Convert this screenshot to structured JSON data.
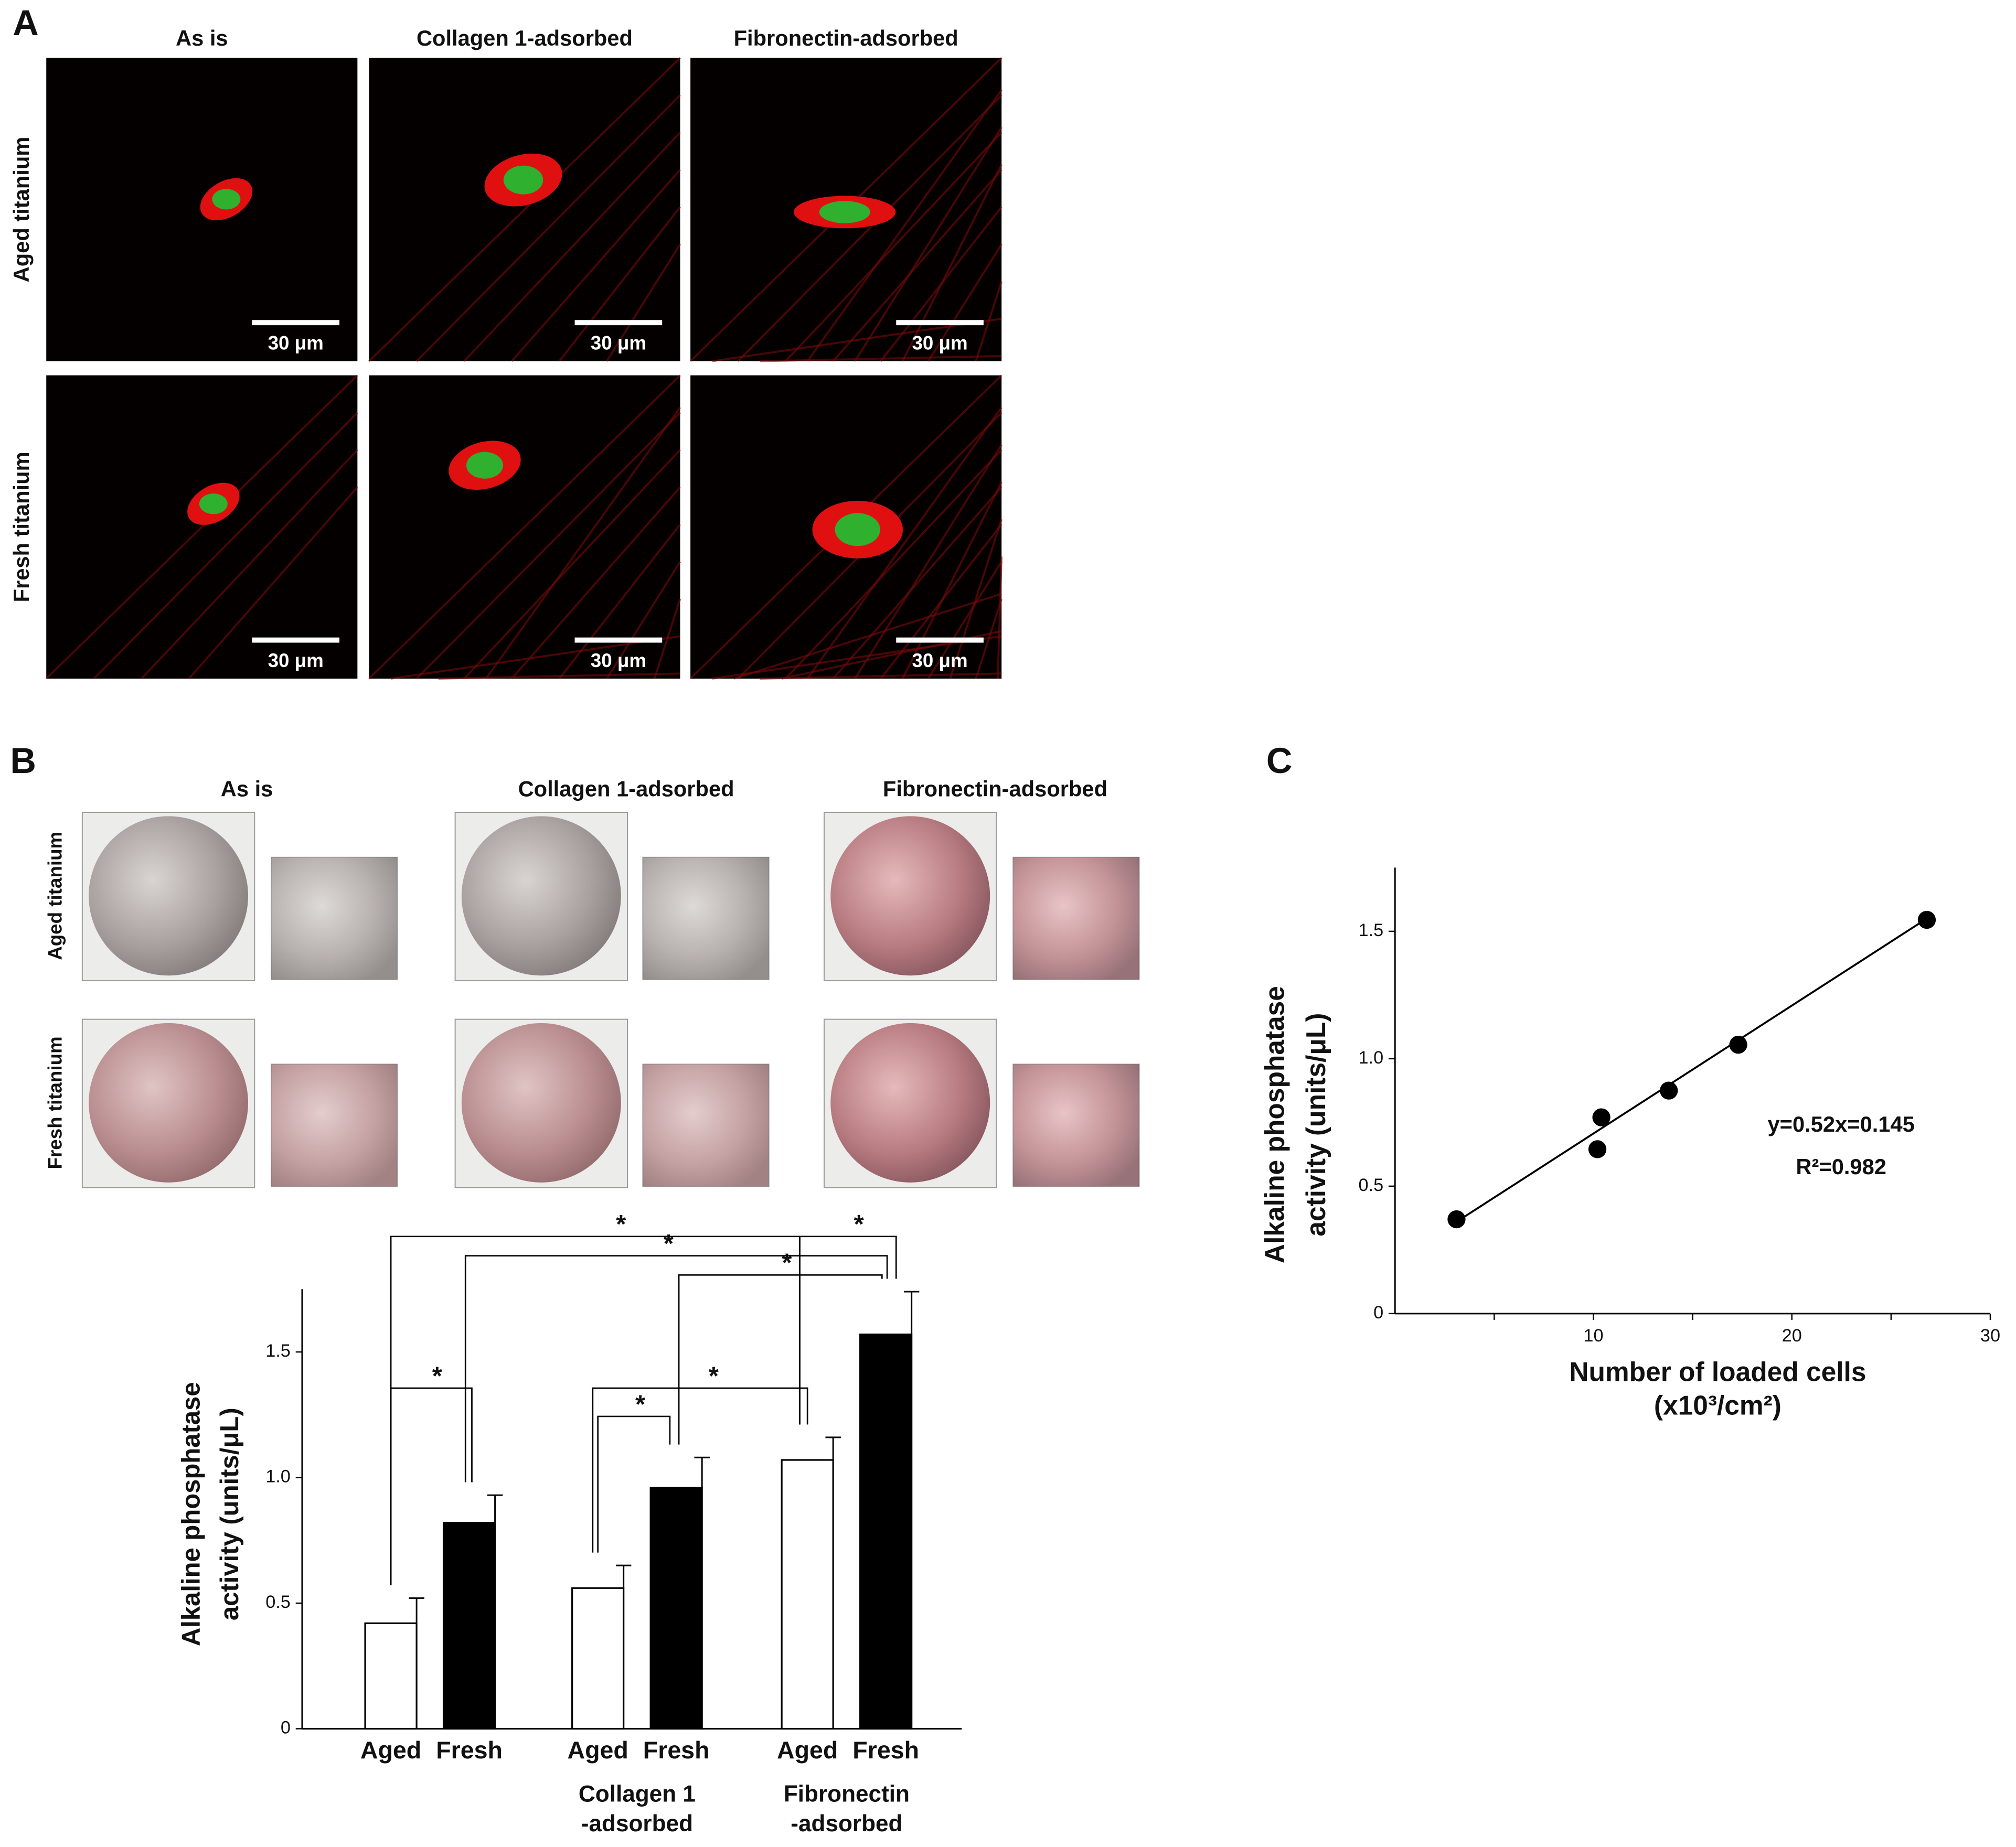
{
  "panel_a": {
    "label": "A",
    "columns": [
      "As is",
      "Collagen 1-adsorbed",
      "Fibronectin-adsorbed"
    ],
    "rows": [
      "Aged titanium",
      "Fresh titanium"
    ],
    "scale_bar": "30 μm"
  },
  "panel_b": {
    "label": "B",
    "columns": [
      "As is",
      "Collagen 1-adsorbed",
      "Fibronectin-adsorbed"
    ],
    "rows": [
      "Aged titanium",
      "Fresh titanium"
    ]
  },
  "panel_c": {
    "label": "C"
  },
  "chart_data": [
    {
      "type": "bar",
      "ylabel": [
        "Alkaline phosphatase",
        "activity (units/μL)"
      ],
      "categories": [
        "Aged",
        "Fresh",
        "Aged",
        "Fresh",
        "Aged",
        "Fresh"
      ],
      "groups": [
        null,
        [
          "Collagen 1",
          "-adsorbed"
        ],
        [
          "Fibronectin",
          "-adsorbed"
        ]
      ],
      "values": [
        0.42,
        0.82,
        0.56,
        0.96,
        1.07,
        1.57
      ],
      "errors": [
        0.1,
        0.11,
        0.09,
        0.12,
        0.09,
        0.17
      ],
      "colors": [
        "#ffffff",
        "#000000",
        "#ffffff",
        "#000000",
        "#ffffff",
        "#000000"
      ],
      "ylim": [
        0,
        1.75
      ],
      "yticks": [
        0,
        0.5,
        {
          "value": 1,
          "label": "1.0"
        },
        1.5
      ],
      "significance": [
        {
          "pair": [
            0,
            1
          ],
          "label": "*"
        },
        {
          "pair": [
            2,
            3
          ],
          "label": "*"
        },
        {
          "pair": [
            2,
            4
          ],
          "label": "*"
        },
        {
          "pair": [
            3,
            5
          ],
          "label": "*"
        },
        {
          "pair": [
            1,
            5
          ],
          "label": "*"
        },
        {
          "pair": [
            0,
            4
          ],
          "label": "*"
        },
        {
          "pair": [
            4,
            5
          ],
          "label": "*"
        }
      ]
    },
    {
      "type": "scatter",
      "xlabel": [
        "Number of loaded cells",
        "(x10³/cm²)"
      ],
      "ylabel": [
        "Alkaline phosphatase",
        "activity (units/μL)"
      ],
      "x": [
        3.1,
        10.2,
        10.4,
        13.8,
        17.3,
        26.8
      ],
      "values": [
        0.37,
        0.645,
        0.77,
        0.875,
        1.055,
        1.545
      ],
      "color": "#000000",
      "fit": {
        "x": [
          3.1,
          26.8
        ],
        "y": [
          0.36,
          1.55
        ]
      },
      "equation": "y=0.52x=0.145",
      "r2": "R²=0.982",
      "xlim": [
        0,
        30
      ],
      "ylim": [
        0,
        1.75
      ],
      "xticks": [
        10,
        20,
        30
      ],
      "minor_xticks": [
        5,
        15,
        25
      ],
      "yticks": [
        0,
        0.5,
        {
          "value": 1,
          "label": "1.0"
        },
        1.5
      ]
    }
  ]
}
